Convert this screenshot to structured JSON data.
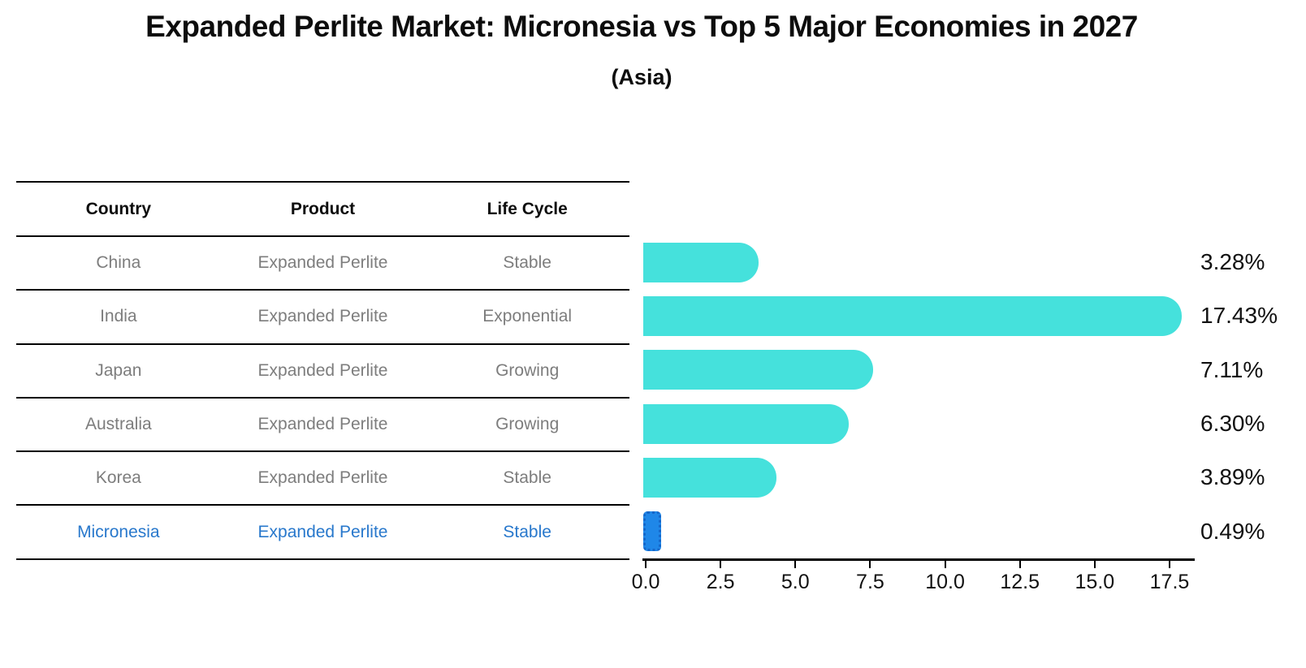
{
  "chart_data": {
    "type": "bar",
    "title": "Expanded Perlite Market: Micronesia vs Top 5 Major Economies in 2027",
    "subtitle": "(Asia)",
    "categories": [
      "China",
      "India",
      "Japan",
      "Australia",
      "Korea",
      "Micronesia"
    ],
    "values": [
      3.28,
      17.43,
      7.11,
      6.3,
      3.89,
      0.49
    ],
    "value_labels": [
      "3.28%",
      "17.43%",
      "7.11%",
      "6.30%",
      "3.89%",
      "0.49%"
    ],
    "highlight_index": 5,
    "orientation": "horizontal",
    "grid": false,
    "legend": "none",
    "xlim": [
      0,
      18.4
    ],
    "xticks": [
      "0.0",
      "2.5",
      "5.0",
      "7.5",
      "10.0",
      "12.5",
      "15.0",
      "17.5"
    ],
    "xlabel": "",
    "ylabel": "",
    "table": {
      "headers": [
        "Country",
        "Product",
        "Life Cycle"
      ],
      "rows": [
        [
          "China",
          "Expanded Perlite",
          "Stable"
        ],
        [
          "India",
          "Expanded Perlite",
          "Exponential"
        ],
        [
          "Japan",
          "Expanded Perlite",
          "Growing"
        ],
        [
          "Australia",
          "Expanded Perlite",
          "Growing"
        ],
        [
          "Korea",
          "Expanded Perlite",
          "Stable"
        ],
        [
          "Micronesia",
          "Expanded Perlite",
          "Stable"
        ]
      ]
    },
    "colors": {
      "bar": "#45E1DC",
      "highlight_bar": "#1F87E8",
      "highlight_bar_border": "#1566C9",
      "highlight_text": "#2878CC",
      "row_text": "#7D7D7D",
      "text": "#111111"
    }
  }
}
